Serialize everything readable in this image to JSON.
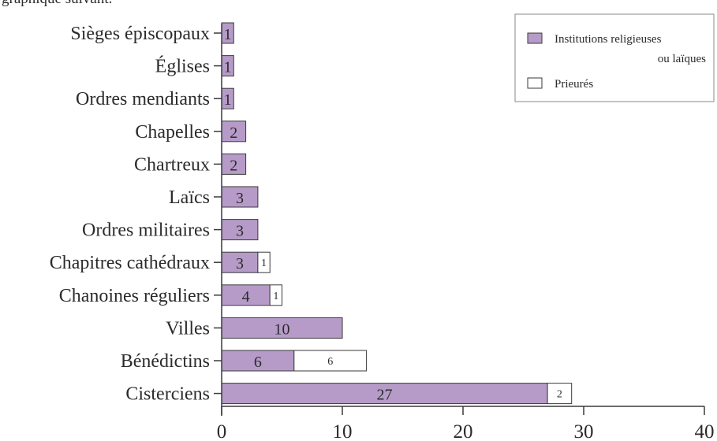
{
  "header": {
    "text": "graphique suivant."
  },
  "chart_data": {
    "type": "bar",
    "orientation": "horizontal",
    "stacked": true,
    "categories": [
      "Sièges épiscopaux",
      "Églises",
      "Ordres mendiants",
      "Chapelles",
      "Chartreux",
      "Laïcs",
      "Ordres militaires",
      "Chapitres cathédraux",
      "Chanoines réguliers",
      "Villes",
      "Bénédictins",
      "Cisterciens"
    ],
    "series": [
      {
        "name": "Institutions religieuses ou laïques",
        "values": [
          1,
          1,
          1,
          2,
          2,
          3,
          3,
          3,
          4,
          10,
          6,
          27
        ],
        "color": "#b69bc8"
      },
      {
        "name": "Prieurés",
        "values": [
          0,
          0,
          0,
          0,
          0,
          0,
          0,
          1,
          1,
          0,
          6,
          2
        ],
        "color": "#ffffff"
      }
    ],
    "xlim": [
      0,
      40
    ],
    "x_ticks": [
      "0",
      "10",
      "20",
      "30",
      "40"
    ],
    "legend": {
      "placement": "top-right",
      "entries": [
        {
          "lines": [
            "Institutions religieuses",
            "ou laïques"
          ],
          "color": "#b69bc8"
        },
        {
          "lines": [
            "Prieurés"
          ],
          "color": "#ffffff"
        }
      ]
    },
    "grid": false
  }
}
